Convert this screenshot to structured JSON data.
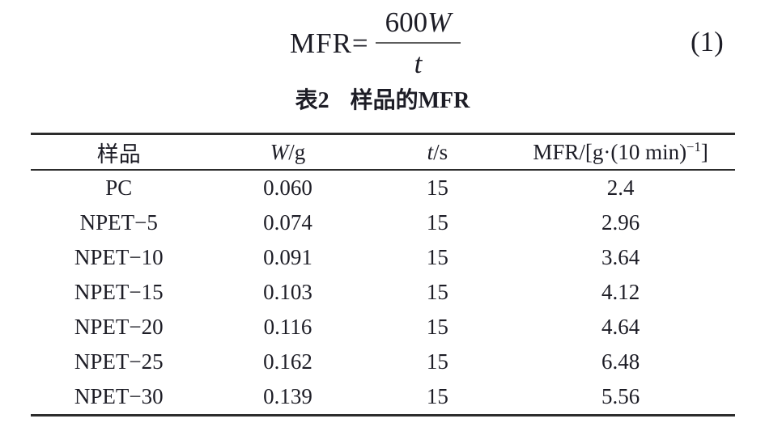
{
  "formula": {
    "lhs": "MFR=",
    "numerator_coeff": "600",
    "numerator_var": "W",
    "denominator_var": "t",
    "number": "(1)"
  },
  "table": {
    "caption_label": "表2",
    "caption_title": "样品的MFR",
    "headers": {
      "sample": "样品",
      "w_var": "W",
      "w_unit": "/g",
      "t_var": "t",
      "t_unit": "/s",
      "mfr_prefix": "MFR/[g·(10 min)",
      "mfr_sup": "−1",
      "mfr_suffix": "]"
    },
    "rows": [
      {
        "sample": "PC",
        "w": "0.060",
        "t": "15",
        "mfr": "2.4"
      },
      {
        "sample": "NPET−5",
        "w": "0.074",
        "t": "15",
        "mfr": "2.96"
      },
      {
        "sample": "NPET−10",
        "w": "0.091",
        "t": "15",
        "mfr": "3.64"
      },
      {
        "sample": "NPET−15",
        "w": "0.103",
        "t": "15",
        "mfr": "4.12"
      },
      {
        "sample": "NPET−20",
        "w": "0.116",
        "t": "15",
        "mfr": "4.64"
      },
      {
        "sample": "NPET−25",
        "w": "0.162",
        "t": "15",
        "mfr": "6.48"
      },
      {
        "sample": "NPET−30",
        "w": "0.139",
        "t": "15",
        "mfr": "5.56"
      }
    ]
  },
  "colors": {
    "text": "#1d1d26",
    "rule": "#2c2c2c",
    "background": "#ffffff"
  }
}
